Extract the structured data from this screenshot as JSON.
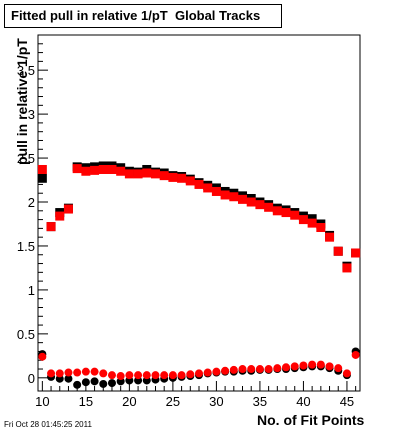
{
  "chart_data": {
    "type": "scatter",
    "title": "Fitted pull in relative 1/pT  Global Tracks",
    "xlabel": "No. of Fit Points",
    "ylabel": "pull in relative 1/pT",
    "xlim": [
      9.5,
      46.5
    ],
    "ylim": [
      -0.15,
      3.9
    ],
    "xticks": [
      10,
      15,
      20,
      25,
      30,
      35,
      40,
      45
    ],
    "yticks": [
      0,
      0.5,
      1,
      1.5,
      2,
      2.5,
      3,
      3.5
    ],
    "ytick_labels": [
      "0",
      "0.5",
      "1",
      "1.5",
      "2",
      "2.5",
      "3",
      "3.5"
    ],
    "grid": false,
    "series": [
      {
        "color": "#000000",
        "marker": "square",
        "x": [
          10,
          11,
          12,
          13,
          14,
          15,
          16,
          17,
          18,
          19,
          20,
          21,
          22,
          23,
          24,
          25,
          26,
          27,
          28,
          29,
          30,
          31,
          32,
          33,
          34,
          35,
          36,
          37,
          38,
          39,
          40,
          41,
          42,
          43,
          44,
          45,
          46
        ],
        "values": [
          2.27,
          1.72,
          1.88,
          1.93,
          2.4,
          2.39,
          2.4,
          2.41,
          2.41,
          2.39,
          2.35,
          2.34,
          2.37,
          2.34,
          2.33,
          2.3,
          2.29,
          2.26,
          2.22,
          2.19,
          2.16,
          2.12,
          2.1,
          2.07,
          2.04,
          2.0,
          1.97,
          1.93,
          1.91,
          1.88,
          1.84,
          1.81,
          1.75,
          1.62,
          1.44,
          1.27,
          1.42
        ]
      },
      {
        "color": "#ff0000",
        "marker": "square",
        "x": [
          10,
          11,
          12,
          13,
          14,
          15,
          16,
          17,
          18,
          19,
          20,
          21,
          22,
          23,
          24,
          25,
          26,
          27,
          28,
          29,
          30,
          31,
          32,
          33,
          34,
          35,
          36,
          37,
          38,
          39,
          40,
          41,
          42,
          43,
          44,
          45,
          46
        ],
        "values": [
          2.37,
          1.72,
          1.84,
          1.92,
          2.38,
          2.35,
          2.36,
          2.37,
          2.37,
          2.35,
          2.32,
          2.32,
          2.33,
          2.32,
          2.3,
          2.28,
          2.27,
          2.24,
          2.2,
          2.16,
          2.12,
          2.08,
          2.06,
          2.03,
          2.0,
          1.97,
          1.94,
          1.9,
          1.88,
          1.85,
          1.8,
          1.76,
          1.71,
          1.6,
          1.44,
          1.25,
          1.42
        ]
      },
      {
        "color": "#000000",
        "marker": "circle",
        "x": [
          10,
          11,
          12,
          13,
          14,
          15,
          16,
          17,
          18,
          19,
          20,
          21,
          22,
          23,
          24,
          25,
          26,
          27,
          28,
          29,
          30,
          31,
          32,
          33,
          34,
          35,
          36,
          37,
          38,
          39,
          40,
          41,
          42,
          43,
          44,
          45,
          46
        ],
        "values": [
          0.27,
          0.01,
          -0.01,
          -0.01,
          -0.08,
          -0.05,
          -0.04,
          -0.07,
          -0.06,
          -0.04,
          -0.03,
          -0.03,
          -0.03,
          -0.02,
          -0.01,
          0.0,
          0.01,
          0.02,
          0.03,
          0.05,
          0.06,
          0.07,
          0.07,
          0.08,
          0.08,
          0.09,
          0.09,
          0.1,
          0.1,
          0.11,
          0.12,
          0.13,
          0.13,
          0.11,
          0.08,
          0.03,
          0.3
        ]
      },
      {
        "color": "#ff0000",
        "marker": "circle",
        "x": [
          10,
          11,
          12,
          13,
          14,
          15,
          16,
          17,
          18,
          19,
          20,
          21,
          22,
          23,
          24,
          25,
          26,
          27,
          28,
          29,
          30,
          31,
          32,
          33,
          34,
          35,
          36,
          37,
          38,
          39,
          40,
          41,
          42,
          43,
          44,
          45,
          46
        ],
        "values": [
          0.24,
          0.05,
          0.05,
          0.06,
          0.06,
          0.07,
          0.07,
          0.05,
          0.03,
          0.02,
          0.03,
          0.03,
          0.03,
          0.03,
          0.03,
          0.03,
          0.03,
          0.04,
          0.05,
          0.06,
          0.07,
          0.08,
          0.09,
          0.1,
          0.1,
          0.1,
          0.1,
          0.11,
          0.12,
          0.13,
          0.14,
          0.15,
          0.15,
          0.13,
          0.11,
          0.05,
          0.26
        ]
      }
    ]
  },
  "footer": {
    "timestamp": "Fri Oct 28 01:45:25 2011"
  },
  "colors": {
    "black_series": "#000000",
    "red_series": "#ff0000"
  }
}
